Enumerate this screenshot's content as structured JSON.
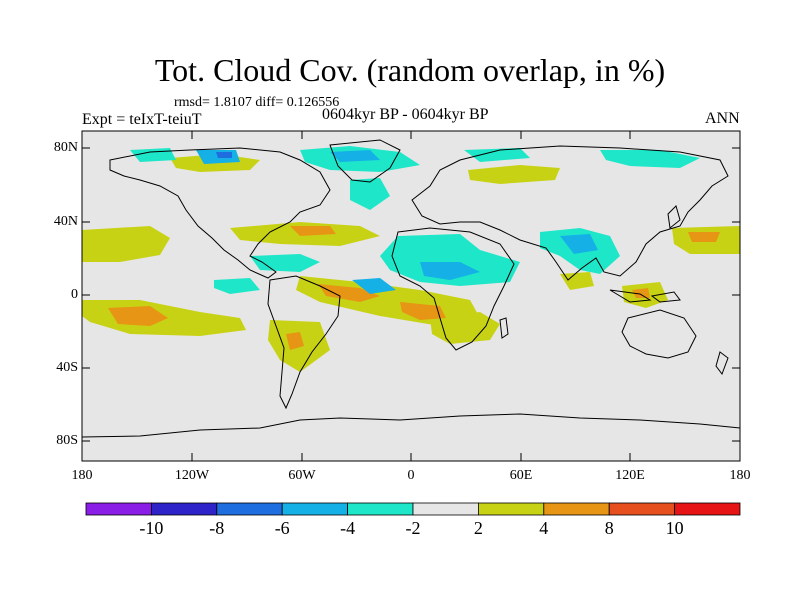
{
  "title": "Tot. Cloud Cov. (random overlap, in %)",
  "stats": "rmsd= 1.8107 diff= 0.126556",
  "experiment": "Expt = teIxT-teiuT",
  "period": "0604kyr BP - 0604kyr BP",
  "season": "ANN",
  "lat_ticks": [
    "80N",
    "40N",
    "0",
    "40S",
    "80S"
  ],
  "lon_ticks": [
    "180",
    "120W",
    "60W",
    "0",
    "60E",
    "120E",
    "180"
  ],
  "colorbar": {
    "tick_labels": [
      "-10",
      "-8",
      "-6",
      "-4",
      "-2",
      "2",
      "4",
      "8",
      "10"
    ],
    "colors": [
      "#8a1de6",
      "#2d23c8",
      "#1e6ee0",
      "#14b0e6",
      "#1ee6c8",
      "#e6e6e6",
      "#c8d214",
      "#e69614",
      "#e6501e",
      "#e61414"
    ]
  },
  "background_color": "#e6e6e6"
}
